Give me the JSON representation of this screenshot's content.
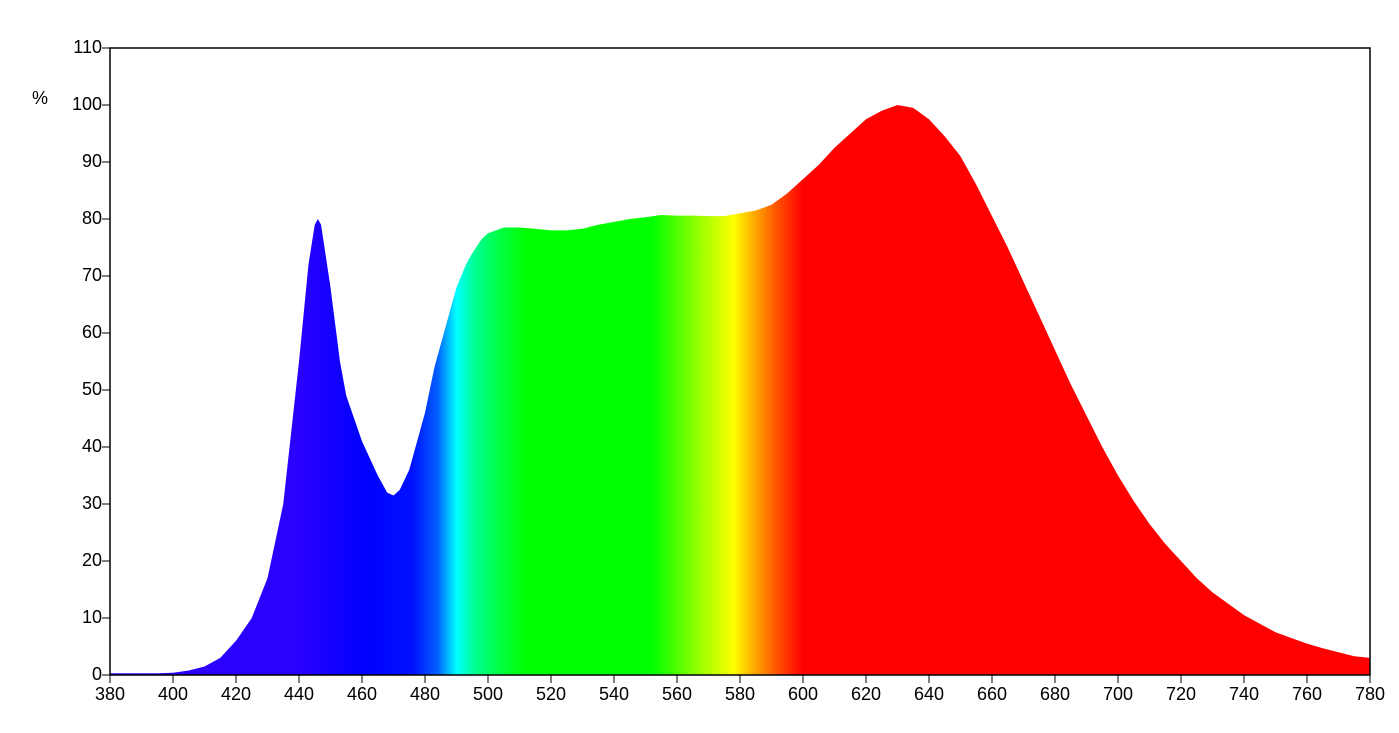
{
  "chart_data": {
    "type": "area",
    "y_label": "%",
    "x": [
      380,
      385,
      390,
      395,
      400,
      405,
      410,
      415,
      420,
      425,
      430,
      435,
      438,
      440,
      443,
      445,
      446,
      447,
      450,
      453,
      455,
      460,
      465,
      468,
      470,
      472,
      475,
      478,
      480,
      483,
      485,
      488,
      490,
      493,
      495,
      498,
      500,
      505,
      510,
      515,
      520,
      525,
      530,
      535,
      540,
      545,
      550,
      555,
      560,
      565,
      570,
      575,
      580,
      585,
      590,
      595,
      600,
      605,
      610,
      615,
      620,
      625,
      630,
      635,
      640,
      645,
      650,
      655,
      660,
      665,
      670,
      675,
      680,
      685,
      690,
      695,
      700,
      705,
      710,
      715,
      720,
      725,
      730,
      735,
      740,
      745,
      750,
      755,
      760,
      765,
      770,
      775,
      780
    ],
    "values": [
      0.3,
      0.3,
      0.3,
      0.3,
      0.4,
      0.8,
      1.5,
      3,
      6,
      10,
      17,
      30,
      45,
      55,
      72,
      79,
      80,
      79,
      68,
      55,
      49,
      41,
      35,
      32,
      31.5,
      32.5,
      36,
      42,
      46,
      54,
      58,
      64,
      68,
      72,
      74,
      76.5,
      77.5,
      78.5,
      78.5,
      78.3,
      78,
      78,
      78.3,
      79,
      79.5,
      80,
      80.3,
      80.7,
      80.6,
      80.6,
      80.5,
      80.5,
      81,
      81.5,
      82.5,
      84.5,
      87,
      89.5,
      92.5,
      95,
      97.5,
      99,
      100,
      99.5,
      97.5,
      94.5,
      91,
      86,
      80.5,
      75,
      69,
      63,
      57,
      51,
      45.5,
      40,
      35,
      30.5,
      26.5,
      23,
      20,
      17,
      14.5,
      12.5,
      10.5,
      9,
      7.5,
      6.5,
      5.5,
      4.7,
      4,
      3.3,
      3
    ],
    "xlim": [
      380,
      780
    ],
    "xticks": [
      380,
      400,
      420,
      440,
      460,
      480,
      500,
      520,
      540,
      560,
      580,
      600,
      620,
      640,
      660,
      680,
      700,
      720,
      740,
      760,
      780
    ],
    "ylim": [
      0,
      110
    ],
    "yticks": [
      0,
      10,
      20,
      30,
      40,
      50,
      60,
      70,
      80,
      90,
      100,
      110
    ]
  }
}
